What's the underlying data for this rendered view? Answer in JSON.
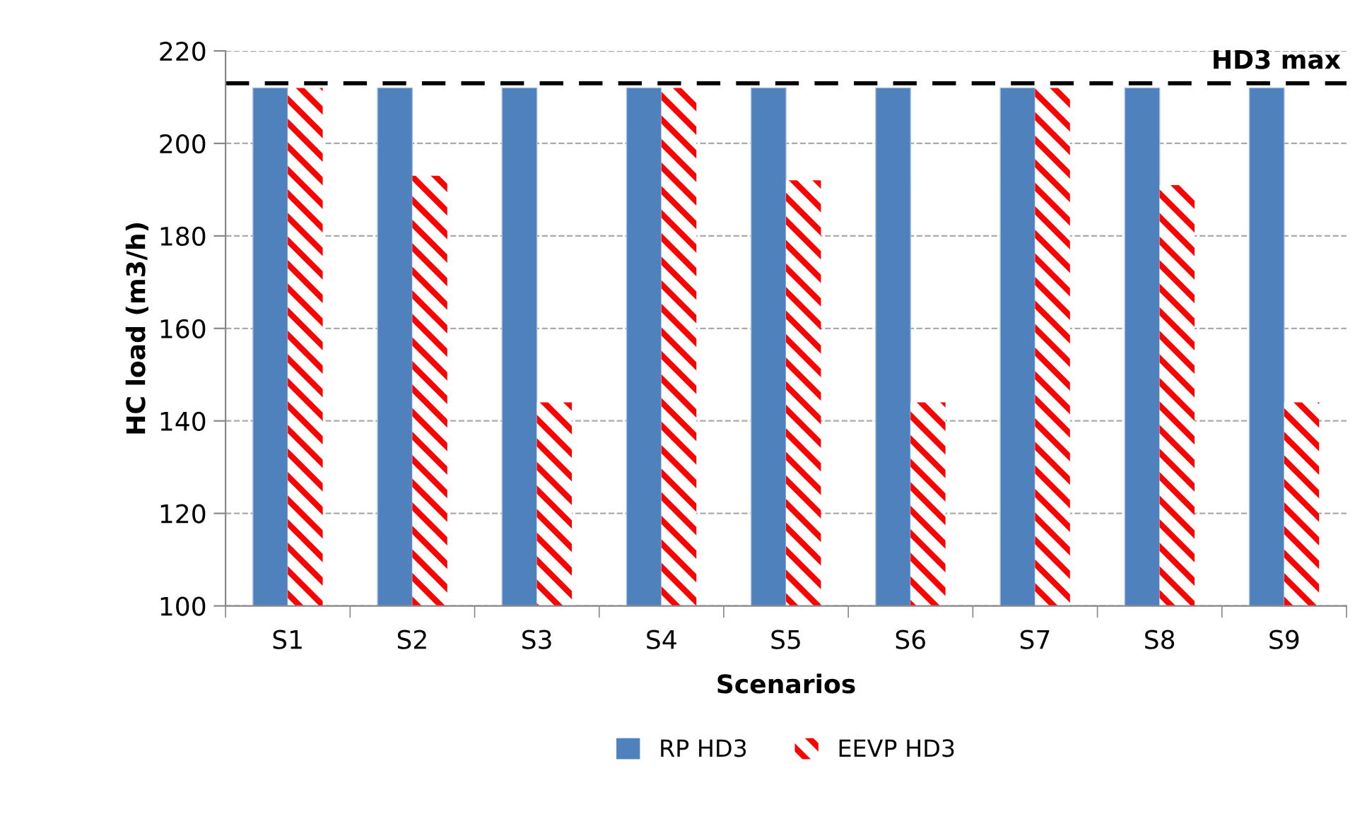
{
  "chart_data": {
    "type": "bar",
    "xlabel": "Scenarios",
    "ylabel": "HC load (m3/h)",
    "categories": [
      "S1",
      "S2",
      "S3",
      "S4",
      "S5",
      "S6",
      "S7",
      "S8",
      "S9"
    ],
    "series": [
      {
        "name": "RP HD3",
        "color": "#4f81bd",
        "values": [
          212,
          212,
          212,
          212,
          212,
          212,
          212,
          212,
          212
        ]
      },
      {
        "name": "EEVP HD3",
        "color": "#ff0000",
        "values": [
          212,
          193,
          144,
          212,
          192,
          144,
          212,
          191,
          144
        ]
      }
    ],
    "ylim": [
      100,
      220
    ],
    "yticks": [
      100,
      120,
      140,
      160,
      180,
      200,
      220
    ],
    "grid": "y",
    "legend": "bottom",
    "ref_lines": [
      {
        "axis": "y",
        "value": 213,
        "label": "HD3 max",
        "color": "#000000",
        "line_style": "dashed"
      }
    ]
  }
}
